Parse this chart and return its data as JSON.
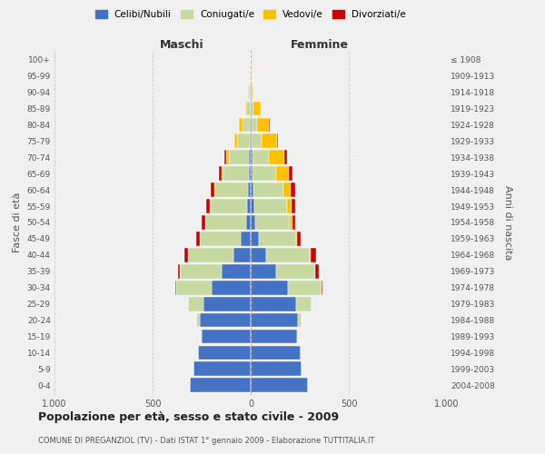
{
  "age_groups": [
    "0-4",
    "5-9",
    "10-14",
    "15-19",
    "20-24",
    "25-29",
    "30-34",
    "35-39",
    "40-44",
    "45-49",
    "50-54",
    "55-59",
    "60-64",
    "65-69",
    "70-74",
    "75-79",
    "80-84",
    "85-89",
    "90-94",
    "95-99",
    "100+"
  ],
  "birth_years": [
    "2004-2008",
    "1999-2003",
    "1994-1998",
    "1989-1993",
    "1984-1988",
    "1979-1983",
    "1974-1978",
    "1969-1973",
    "1964-1968",
    "1959-1963",
    "1954-1958",
    "1949-1953",
    "1944-1948",
    "1939-1943",
    "1934-1938",
    "1929-1933",
    "1924-1928",
    "1919-1923",
    "1914-1918",
    "1909-1913",
    "≤ 1908"
  ],
  "male": {
    "celibi": [
      310,
      290,
      270,
      250,
      260,
      240,
      200,
      150,
      90,
      50,
      25,
      20,
      15,
      10,
      10,
      5,
      3,
      2,
      2,
      0,
      0
    ],
    "coniugati": [
      0,
      0,
      0,
      5,
      20,
      80,
      180,
      210,
      230,
      210,
      205,
      185,
      165,
      130,
      100,
      65,
      40,
      20,
      8,
      2,
      0
    ],
    "vedovi": [
      0,
      0,
      0,
      0,
      0,
      0,
      0,
      0,
      0,
      0,
      3,
      3,
      5,
      8,
      15,
      15,
      18,
      8,
      3,
      0,
      0
    ],
    "divorziati": [
      0,
      0,
      0,
      0,
      0,
      0,
      5,
      12,
      18,
      18,
      18,
      18,
      20,
      12,
      8,
      0,
      0,
      0,
      0,
      0,
      0
    ]
  },
  "female": {
    "nubili": [
      290,
      260,
      255,
      235,
      240,
      230,
      190,
      130,
      80,
      40,
      22,
      20,
      15,
      10,
      8,
      5,
      3,
      2,
      2,
      0,
      0
    ],
    "coniugate": [
      0,
      0,
      0,
      5,
      20,
      80,
      170,
      200,
      220,
      190,
      175,
      165,
      150,
      120,
      85,
      50,
      30,
      12,
      5,
      2,
      0
    ],
    "vedove": [
      0,
      0,
      0,
      0,
      0,
      0,
      0,
      0,
      5,
      8,
      15,
      25,
      40,
      65,
      80,
      80,
      60,
      35,
      8,
      2,
      0
    ],
    "divorziate": [
      0,
      0,
      0,
      0,
      0,
      0,
      8,
      18,
      30,
      18,
      15,
      18,
      20,
      18,
      12,
      5,
      3,
      0,
      0,
      0,
      0
    ]
  },
  "colors": {
    "celibi": "#4472c4",
    "coniugati": "#c5d9a0",
    "vedovi": "#ffc000",
    "divorziati": "#cc0000"
  },
  "title": "Popolazione per età, sesso e stato civile - 2009",
  "subtitle": "COMUNE DI PREGANZIOL (TV) - Dati ISTAT 1° gennaio 2009 - Elaborazione TUTTITALIA.IT",
  "xlabel_left": "Maschi",
  "xlabel_right": "Femmine",
  "ylabel_left": "Fasce di età",
  "ylabel_right": "Anni di nascita",
  "xlim": 1000,
  "background_color": "#f0f0f0",
  "legend_labels": [
    "Celibi/Nubili",
    "Coniugati/e",
    "Vedovi/e",
    "Divorziati/e"
  ]
}
